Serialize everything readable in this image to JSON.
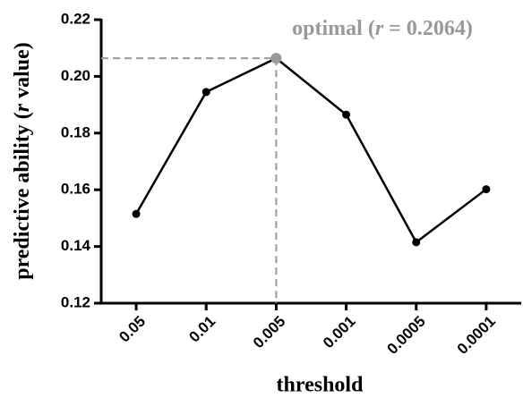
{
  "chart_data": {
    "type": "line",
    "categories": [
      "0.05",
      "0.01",
      "0.005",
      "0.001",
      "0.0005",
      "0.0001"
    ],
    "series": [
      {
        "color": "#000000",
        "values": [
          0.1515,
          0.1945,
          0.2064,
          0.1865,
          0.1415,
          0.1602
        ],
        "marker_colors": [
          "#000000",
          "#000000",
          "#999999",
          "#000000",
          "#000000",
          "#000000"
        ]
      }
    ],
    "ylim": [
      0.12,
      0.22
    ],
    "yticks": [
      0.12,
      0.14,
      0.16,
      0.18,
      {
        "value": 0.2,
        "label": "0.20"
      },
      0.22
    ],
    "x_label": "threshold",
    "y_label": [
      "predictive ability (",
      "r",
      " value)"
    ],
    "annotation": [
      "optimal (",
      "r",
      " = 0.2064)"
    ],
    "annotation_color": "#999999"
  }
}
